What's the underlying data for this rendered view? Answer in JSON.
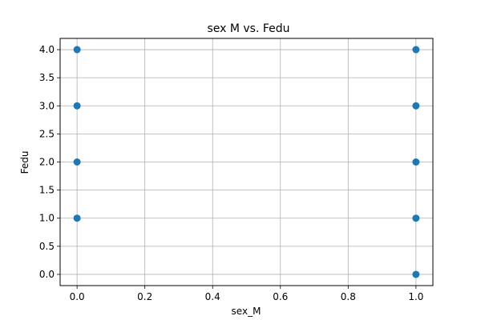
{
  "chart_data": {
    "type": "scatter",
    "title": "sex M vs. Fedu",
    "xlabel": "sex_M",
    "ylabel": "Fedu",
    "xlim": [
      -0.05,
      1.05
    ],
    "ylim": [
      -0.2,
      4.2
    ],
    "xticks": [
      "0.0",
      "0.2",
      "0.4",
      "0.6",
      "0.8",
      "1.0"
    ],
    "yticks": [
      "0.0",
      "0.5",
      "1.0",
      "1.5",
      "2.0",
      "2.5",
      "3.0",
      "3.5",
      "4.0"
    ],
    "grid": true,
    "legend": "none",
    "marker_color": "#1f77b4",
    "series": [
      {
        "x": [
          0,
          0,
          0,
          0,
          1,
          1,
          1,
          1,
          1
        ],
        "y": [
          1,
          2,
          3,
          4,
          0,
          1,
          2,
          3,
          4
        ]
      }
    ]
  }
}
